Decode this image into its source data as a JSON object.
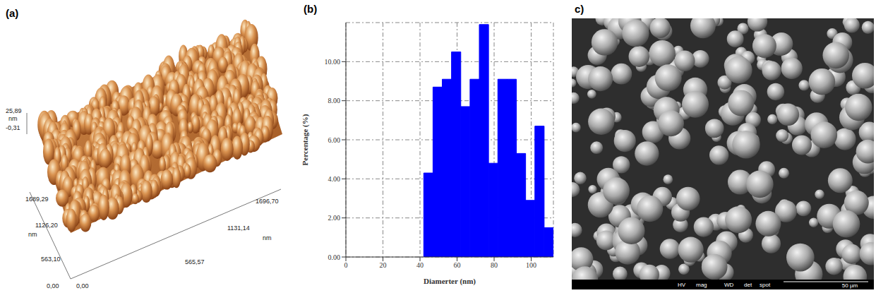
{
  "panel_labels": [
    "(a)",
    "(b)",
    "c)"
  ],
  "panel_a": {
    "z_axis": {
      "ticks": [
        "25,89",
        "-0,31"
      ],
      "unit": "nm"
    },
    "y_axis": {
      "ticks": [
        "0,00",
        "563,10",
        "1126,20",
        "1689,29"
      ],
      "unit": "nm"
    },
    "x_axis": {
      "ticks": [
        "0,00",
        "565,57",
        "1131,14",
        "1696,70"
      ],
      "unit": "nm"
    }
  },
  "chart_data": {
    "type": "histogram",
    "x_label": "Diamerter (nm)",
    "y_label": "Percentage (%)",
    "bins": [
      42,
      47,
      52,
      57,
      62,
      67,
      72,
      77,
      82,
      87,
      92,
      97,
      102,
      107,
      112
    ],
    "values": [
      4.3,
      8.7,
      9.1,
      10.5,
      7.7,
      9.1,
      11.9,
      4.8,
      9.1,
      9.1,
      5.3,
      2.9,
      6.7,
      1.5
    ],
    "color": "#0000ff",
    "xlim": [
      0,
      112
    ],
    "xticks": [
      0,
      20,
      40,
      60,
      80,
      100
    ],
    "ylim": [
      0,
      12
    ],
    "yticks": [
      {
        "value": 0,
        "label": "0.00"
      },
      {
        "value": 2,
        "label": "2.00"
      },
      {
        "value": 4,
        "label": "4.00"
      },
      {
        "value": 6,
        "label": "6.00"
      },
      {
        "value": 8,
        "label": "8.00"
      },
      {
        "value": 10,
        "label": "10.00"
      }
    ],
    "grid": true
  },
  "panel_c": {
    "info_bar": [
      "HV",
      "mag",
      "WD",
      "det",
      "spot"
    ],
    "scale_bar": "50 µm"
  }
}
